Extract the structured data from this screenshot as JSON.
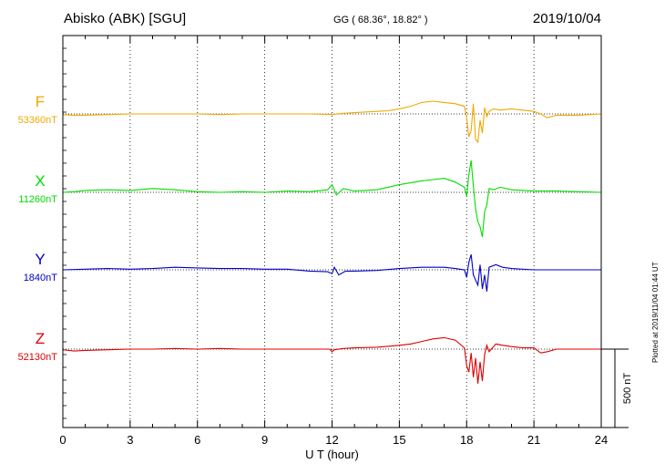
{
  "header": {
    "station": "Abisko (ABK)  [SGU]",
    "coords": "GG ( 68.36°,  18.82° )",
    "date": "2019/10/04"
  },
  "plotted_note": "Plotted at 2019/11/04 01:44 UT",
  "scale_bar_label": "500 nT",
  "colors": {
    "F": "#f0a800",
    "X": "#00dd00",
    "Y": "#0000cc",
    "Z": "#dd0000"
  },
  "chart_data": {
    "type": "line",
    "xlabel": "U T (hour)",
    "xlim": [
      0,
      24
    ],
    "xticks": [
      "0",
      "3",
      "6",
      "9",
      "12",
      "15",
      "18",
      "21",
      "24"
    ],
    "grid": true,
    "scale_nT": 500,
    "series": [
      {
        "name": "F",
        "baseline_label": "53360nT",
        "x": [
          0,
          0.5,
          1,
          2,
          3,
          4,
          5,
          6,
          7,
          8,
          9,
          10,
          11,
          12,
          12.5,
          13,
          14,
          14.5,
          15,
          15.5,
          16,
          16.5,
          17,
          17.5,
          17.9,
          18.0,
          18.1,
          18.2,
          18.3,
          18.4,
          18.5,
          18.6,
          18.7,
          18.8,
          18.9,
          19.0,
          19.2,
          19.5,
          20,
          20.5,
          21,
          21.3,
          21.6,
          22,
          23,
          24
        ],
        "values": [
          -5,
          -10,
          -10,
          -5,
          0,
          0,
          0,
          0,
          -5,
          0,
          0,
          0,
          0,
          -5,
          5,
          10,
          20,
          25,
          40,
          60,
          90,
          100,
          90,
          80,
          60,
          -30,
          -180,
          -130,
          80,
          -200,
          -220,
          -50,
          -150,
          50,
          -20,
          20,
          40,
          30,
          40,
          30,
          20,
          0,
          -30,
          -10,
          -10,
          0
        ]
      },
      {
        "name": "X",
        "baseline_label": "11260nT",
        "x": [
          0,
          0.5,
          1,
          2,
          3,
          4,
          5,
          6,
          7,
          8,
          9,
          10,
          11,
          11.8,
          12.0,
          12.2,
          12.5,
          13,
          14,
          15,
          16,
          16.5,
          17,
          17.5,
          17.9,
          18.0,
          18.1,
          18.2,
          18.3,
          18.4,
          18.5,
          18.6,
          18.7,
          18.8,
          18.9,
          19.0,
          19.2,
          19.5,
          20,
          21,
          22,
          23,
          24
        ],
        "values": [
          0,
          5,
          15,
          20,
          15,
          30,
          20,
          5,
          0,
          5,
          0,
          10,
          5,
          20,
          60,
          -20,
          30,
          10,
          20,
          60,
          90,
          100,
          110,
          80,
          40,
          -30,
          140,
          250,
          50,
          -130,
          -230,
          -270,
          -350,
          -150,
          -100,
          30,
          20,
          40,
          20,
          10,
          10,
          5,
          0
        ]
      },
      {
        "name": "Y",
        "baseline_label": "1840nT",
        "x": [
          0,
          1,
          2,
          3,
          4,
          5,
          6,
          7,
          8,
          9,
          10,
          11,
          11.8,
          12.0,
          12.1,
          12.3,
          12.6,
          13,
          14,
          15,
          16,
          17,
          17.5,
          17.9,
          18.0,
          18.1,
          18.2,
          18.3,
          18.4,
          18.5,
          18.6,
          18.7,
          18.8,
          18.9,
          19.0,
          19.3,
          19.6,
          20,
          21,
          22,
          23,
          24
        ],
        "values": [
          0,
          5,
          10,
          5,
          10,
          20,
          15,
          10,
          10,
          5,
          5,
          -10,
          -15,
          -30,
          20,
          -40,
          -10,
          -10,
          -5,
          10,
          20,
          20,
          10,
          0,
          -60,
          60,
          120,
          -40,
          -80,
          -120,
          40,
          -150,
          -40,
          -170,
          20,
          40,
          20,
          10,
          0,
          0,
          0,
          0
        ]
      },
      {
        "name": "Z",
        "baseline_label": "52130nT",
        "x": [
          0,
          0.5,
          1,
          2,
          3,
          4,
          5,
          6,
          7,
          8,
          9,
          10,
          11,
          11.9,
          12.0,
          12.1,
          12.5,
          13,
          14,
          15,
          15.5,
          16,
          16.5,
          17,
          17.5,
          17.9,
          18.0,
          18.1,
          18.2,
          18.3,
          18.4,
          18.5,
          18.6,
          18.7,
          18.8,
          18.9,
          19.0,
          19.3,
          19.6,
          20,
          20.5,
          21,
          21.3,
          21.6,
          22,
          23,
          24
        ],
        "values": [
          -5,
          -15,
          -10,
          -5,
          0,
          0,
          5,
          0,
          5,
          0,
          0,
          0,
          0,
          0,
          -20,
          -5,
          5,
          10,
          15,
          30,
          40,
          60,
          80,
          90,
          70,
          10,
          -130,
          -180,
          -30,
          -220,
          -70,
          -270,
          -100,
          -250,
          -40,
          30,
          -20,
          40,
          30,
          20,
          10,
          10,
          -30,
          -20,
          0,
          0,
          0
        ]
      }
    ]
  }
}
